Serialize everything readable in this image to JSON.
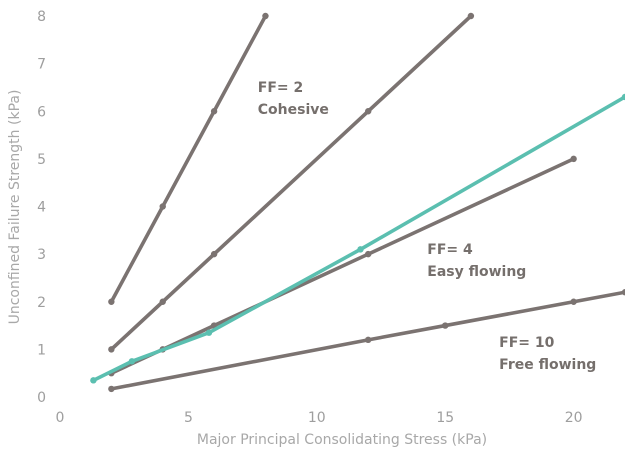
{
  "chart_data": {
    "type": "line",
    "xlabel": "Major Principal Consolidating Stress (kPa)",
    "ylabel": "Unconfined Failure Strength (kPa)",
    "xlim": [
      0,
      22
    ],
    "ylim": [
      0,
      8
    ],
    "x_ticks": [
      0,
      5,
      10,
      15,
      20
    ],
    "y_ticks": [
      0,
      1,
      2,
      3,
      4,
      5,
      6,
      7,
      8
    ],
    "grid": false,
    "legend": "none",
    "colors": {
      "series": "#7b7371",
      "highlight": "#5bbfb0"
    },
    "series": [
      {
        "values": [
          [
            2,
            2
          ],
          [
            4,
            4
          ],
          [
            6,
            6
          ],
          [
            8,
            8
          ]
        ],
        "color": "#7b7371",
        "markers": true
      },
      {
        "values": [
          [
            2,
            1
          ],
          [
            4,
            2
          ],
          [
            6,
            3
          ],
          [
            12,
            6
          ],
          [
            16,
            8
          ]
        ],
        "color": "#7b7371",
        "markers": true
      },
      {
        "values": [
          [
            2,
            0.5
          ],
          [
            4,
            1
          ],
          [
            6,
            1.5
          ],
          [
            12,
            3
          ],
          [
            20,
            5
          ]
        ],
        "color": "#7b7371",
        "markers": true
      },
      {
        "values": [
          [
            2,
            0.17
          ],
          [
            12,
            1.2
          ],
          [
            15,
            1.5
          ],
          [
            20,
            2
          ],
          [
            22,
            2.2
          ]
        ],
        "color": "#7b7371",
        "markers": true
      },
      {
        "values": [
          [
            1.3,
            0.35
          ],
          [
            2.8,
            0.75
          ],
          [
            5.8,
            1.35
          ],
          [
            11.7,
            3.1
          ],
          [
            22,
            6.3
          ]
        ],
        "color": "#5bbfb0",
        "markers": true
      }
    ],
    "annotations": [
      {
        "lines": [
          "FF= 2",
          "Cohesive"
        ],
        "x": 7.7,
        "y": 6.4
      },
      {
        "lines": [
          "FF= 4",
          "Easy flowing"
        ],
        "x": 14.3,
        "y": 3.0
      },
      {
        "lines": [
          "FF= 10",
          "Free flowing"
        ],
        "x": 17.1,
        "y": 1.05
      }
    ]
  }
}
